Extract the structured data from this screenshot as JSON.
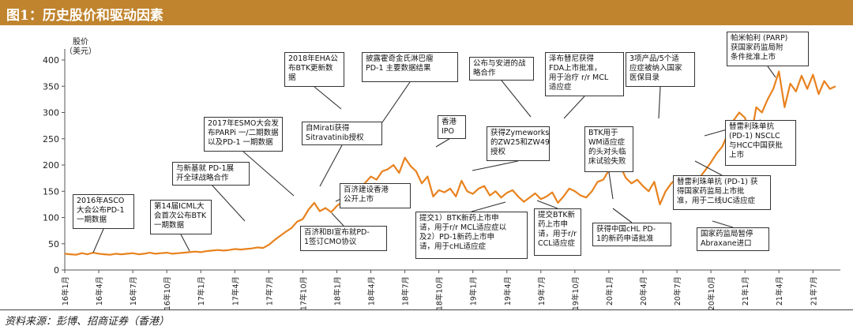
{
  "header": {
    "title": "图1：历史股价和驱动因素"
  },
  "source": "资料来源：彭博、招商证券（香港）",
  "colors": {
    "accent": "#c0842e",
    "line": "#e8821e"
  },
  "chart_data": {
    "type": "line",
    "ylabel": "股价\n（美元）",
    "ylim": [
      0,
      400
    ],
    "yticks": [
      "0",
      "50",
      "100",
      "150",
      "200",
      "250",
      "300",
      "350",
      "400"
    ],
    "xticks": [
      "16年1月",
      "16年4月",
      "16年7月",
      "16年10月",
      "17年1月",
      "17年4月",
      "17年7月",
      "17年10月",
      "18年1月",
      "18年4月",
      "18年7月",
      "18年10月",
      "19年1月",
      "19年4月",
      "19年7月",
      "19年10月",
      "20年1月",
      "20年4月",
      "20年7月",
      "20年10月",
      "21年1月",
      "21年4月",
      "21年7月"
    ],
    "series": [
      {
        "values_by_month": [
          [
            0,
            31
          ],
          [
            0.5,
            30
          ],
          [
            1,
            29
          ],
          [
            1.5,
            32
          ],
          [
            2,
            30
          ],
          [
            2.5,
            33
          ],
          [
            3,
            31
          ],
          [
            3.5,
            30
          ],
          [
            4,
            29
          ],
          [
            4.5,
            31
          ],
          [
            5,
            30
          ],
          [
            5.5,
            31
          ],
          [
            6,
            32
          ],
          [
            6.5,
            30
          ],
          [
            7,
            31
          ],
          [
            7.5,
            33
          ],
          [
            8,
            31
          ],
          [
            8.5,
            32
          ],
          [
            9,
            33
          ],
          [
            9.5,
            31
          ],
          [
            10,
            32
          ],
          [
            10.5,
            33
          ],
          [
            11,
            34
          ],
          [
            11.5,
            35
          ],
          [
            12,
            34
          ],
          [
            12.5,
            36
          ],
          [
            13,
            37
          ],
          [
            13.5,
            38
          ],
          [
            14,
            37
          ],
          [
            14.5,
            38
          ],
          [
            15,
            40
          ],
          [
            15.5,
            39
          ],
          [
            16,
            40
          ],
          [
            16.5,
            41
          ],
          [
            17,
            43
          ],
          [
            17.5,
            42
          ],
          [
            18,
            48
          ],
          [
            18.5,
            57
          ],
          [
            19,
            65
          ],
          [
            19.5,
            73
          ],
          [
            20,
            80
          ],
          [
            20.5,
            92
          ],
          [
            21,
            97
          ],
          [
            21.5,
            115
          ],
          [
            22,
            128
          ],
          [
            22.5,
            112
          ],
          [
            23,
            118
          ],
          [
            23.5,
            110
          ],
          [
            24,
            122
          ],
          [
            24.5,
            130
          ],
          [
            25,
            128
          ],
          [
            25.5,
            160
          ],
          [
            26,
            158
          ],
          [
            26.5,
            166
          ],
          [
            27,
            178
          ],
          [
            27.5,
            172
          ],
          [
            28,
            188
          ],
          [
            28.5,
            192
          ],
          [
            29,
            200
          ],
          [
            29.5,
            185
          ],
          [
            30,
            214
          ],
          [
            30.5,
            198
          ],
          [
            31,
            188
          ],
          [
            31.5,
            165
          ],
          [
            32,
            178
          ],
          [
            32.5,
            140
          ],
          [
            33,
            152
          ],
          [
            33.5,
            148
          ],
          [
            34,
            155
          ],
          [
            34.5,
            140
          ],
          [
            35,
            170
          ],
          [
            35.5,
            150
          ],
          [
            36,
            145
          ],
          [
            36.5,
            155
          ],
          [
            37,
            160
          ],
          [
            37.5,
            142
          ],
          [
            38,
            150
          ],
          [
            38.5,
            138
          ],
          [
            39,
            147
          ],
          [
            39.5,
            152
          ],
          [
            40,
            140
          ],
          [
            40.5,
            130
          ],
          [
            41,
            138
          ],
          [
            41.5,
            146
          ],
          [
            42,
            135
          ],
          [
            42.5,
            140
          ],
          [
            43,
            148
          ],
          [
            43.5,
            128
          ],
          [
            44,
            140
          ],
          [
            44.5,
            155
          ],
          [
            45,
            150
          ],
          [
            45.5,
            142
          ],
          [
            46,
            138
          ],
          [
            46.5,
            150
          ],
          [
            47,
            168
          ],
          [
            47.5,
            172
          ],
          [
            48,
            190
          ],
          [
            48.5,
            210
          ],
          [
            49,
            198
          ],
          [
            49.5,
            175
          ],
          [
            50,
            165
          ],
          [
            50.5,
            172
          ],
          [
            51,
            160
          ],
          [
            51.5,
            150
          ],
          [
            52,
            168
          ],
          [
            52.5,
            125
          ],
          [
            53,
            150
          ],
          [
            53.5,
            165
          ],
          [
            54,
            175
          ],
          [
            54.5,
            178
          ],
          [
            55,
            165
          ],
          [
            55.5,
            170
          ],
          [
            56,
            176
          ],
          [
            56.5,
            190
          ],
          [
            57,
            205
          ],
          [
            57.5,
            222
          ],
          [
            58,
            235
          ],
          [
            58.5,
            260
          ],
          [
            59,
            285
          ],
          [
            59.5,
            300
          ],
          [
            60,
            290
          ],
          [
            60.5,
            250
          ],
          [
            61,
            310
          ],
          [
            61.5,
            300
          ],
          [
            62,
            325
          ],
          [
            62.5,
            345
          ],
          [
            63,
            378
          ],
          [
            63.5,
            310
          ],
          [
            64,
            355
          ],
          [
            64.5,
            340
          ],
          [
            65,
            370
          ],
          [
            65.5,
            345
          ],
          [
            66,
            372
          ],
          [
            66.5,
            335
          ],
          [
            67,
            360
          ],
          [
            67.5,
            345
          ],
          [
            68,
            350
          ]
        ]
      }
    ]
  },
  "annotations": [
    {
      "lines": [
        "2016年ASCO",
        "大会公布PD-1",
        "一期数据"
      ]
    },
    {
      "lines": [
        "第14届ICML大",
        "会首次公布BTK",
        "一期数据"
      ]
    },
    {
      "lines": [
        "与新基就 PD-1展",
        "开全球战略合作"
      ]
    },
    {
      "lines": [
        "2017年ESMO大会发",
        "布PARPi 一/二期数据",
        "以及PD-1 一期数据"
      ]
    },
    {
      "lines": [
        "2018年EHA公",
        "布BTK更新数",
        "据"
      ]
    },
    {
      "lines": [
        "自Mirati获得",
        "Sitravatinib授权"
      ]
    },
    {
      "lines": [
        "百济建设香港",
        "公开上市"
      ]
    },
    {
      "lines": [
        "百济和BI宣布就PD-",
        "1签订CMO协议"
      ]
    },
    {
      "lines": [
        "披露霍奇金氏淋巴瘤",
        "PD-1 主要数据结果"
      ]
    },
    {
      "lines": [
        "香港",
        "IPO"
      ]
    },
    {
      "lines": [
        "公布与安进的战",
        "略合作"
      ]
    },
    {
      "lines": [
        "获得Zymeworks",
        "的ZW25和ZW49",
        "授权"
      ]
    },
    {
      "lines": [
        "提交1）BTK新药上市申",
        "请，用于r/r MCL适应症以",
        "及2）PD-1新药上市申",
        "请，用于cHL适应症"
      ]
    },
    {
      "lines": [
        "提交BTK新",
        "药上市申",
        "请，用于r/r",
        "CCL适应症"
      ]
    },
    {
      "lines": [
        "泽布替尼获得",
        "FDA上市批准，",
        "用于治疗 r/r MCL",
        "适应症"
      ]
    },
    {
      "lines": [
        "BTK用于",
        "WM适应症",
        "的头对头临",
        "床试验失败"
      ]
    },
    {
      "lines": [
        "获得中国cHL PD-",
        "1的新药申请批准"
      ]
    },
    {
      "lines": [
        "3项产品/5个适",
        "应症被纳入国家",
        "医保目录"
      ]
    },
    {
      "lines": [
        "帕米帕利 (PARP)",
        "获国家药监局附",
        "条件批准上市"
      ]
    },
    {
      "lines": [
        "替雷利珠单抗",
        "(PD-1) NSCLC",
        "与HCC中国获批",
        "上市"
      ]
    },
    {
      "lines": [
        "替雷利珠单抗 (PD-1) 获",
        "得国家药监局上市批",
        "准，用于二线UC适应症"
      ]
    },
    {
      "lines": [
        "国家药监局暂停",
        "Abraxane进口"
      ]
    }
  ]
}
